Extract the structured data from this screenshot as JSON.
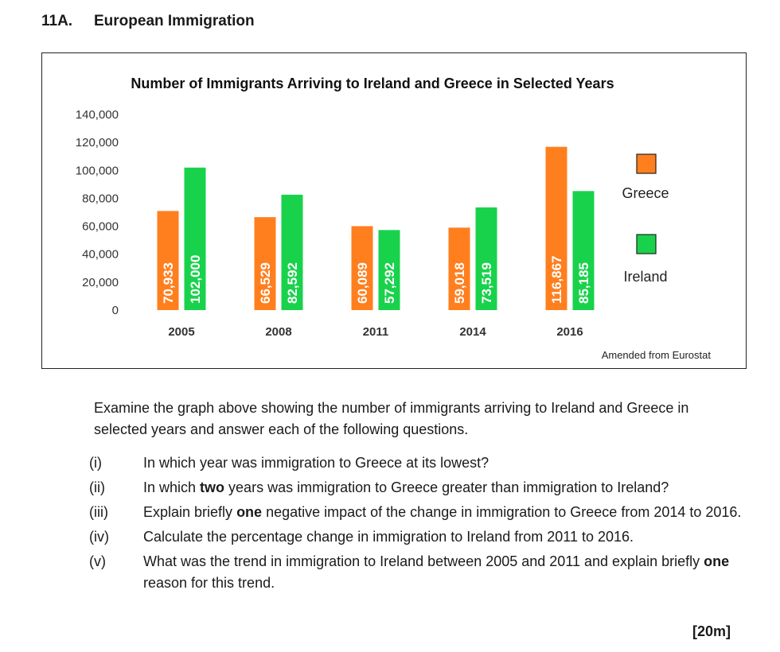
{
  "header": {
    "number": "11A.",
    "title": "European Immigration"
  },
  "chart_data": {
    "type": "bar",
    "title": "Number of Immigrants Arriving to Ireland and Greece in Selected Years",
    "categories": [
      "2005",
      "2008",
      "2011",
      "2014",
      "2016"
    ],
    "series": [
      {
        "name": "Greece",
        "color": "#ff7f1e",
        "values": [
          70933,
          66529,
          60089,
          59018,
          116867
        ],
        "labels": [
          "70,933",
          "66,529",
          "60,089",
          "59,018",
          "116,867"
        ]
      },
      {
        "name": "Ireland",
        "color": "#19d24b",
        "values": [
          102000,
          82592,
          57292,
          73519,
          85185
        ],
        "labels": [
          "102,000",
          "82,592",
          "57,292",
          "73,519",
          "85,185"
        ]
      }
    ],
    "ylim": [
      0,
      140000
    ],
    "yticks": [
      0,
      20000,
      40000,
      60000,
      80000,
      100000,
      120000,
      140000
    ],
    "ytick_labels": [
      "0",
      "20,000",
      "40,000",
      "60,000",
      "80,000",
      "100,000",
      "120,000",
      "140,000"
    ],
    "legend_position": "right",
    "grid": false,
    "source": "Amended from Eurostat"
  },
  "intro": "Examine the graph above showing the number of immigrants arriving to Ireland and Greece in selected years and answer each of the following questions.",
  "questions": [
    {
      "label": "(i)",
      "parts": [
        {
          "t": "In which year was immigration to Greece at its lowest?"
        }
      ]
    },
    {
      "label": "(ii)",
      "parts": [
        {
          "t": "In which "
        },
        {
          "t": "two",
          "b": true
        },
        {
          "t": " years was immigration to Greece greater than immigration to Ireland?"
        }
      ]
    },
    {
      "label": "(iii)",
      "parts": [
        {
          "t": "Explain briefly "
        },
        {
          "t": "one",
          "b": true
        },
        {
          "t": " negative impact of the change in immigration to Greece from 2014 to 2016."
        }
      ]
    },
    {
      "label": "(iv)",
      "parts": [
        {
          "t": "Calculate the percentage change in immigration to Ireland from 2011 to 2016."
        }
      ]
    },
    {
      "label": "(v)",
      "parts": [
        {
          "t": "What was the trend in immigration to Ireland between 2005 and 2011 and explain briefly "
        },
        {
          "t": "one",
          "b": true
        },
        {
          "t": " reason for this trend."
        }
      ]
    }
  ],
  "marks": "[20m]"
}
